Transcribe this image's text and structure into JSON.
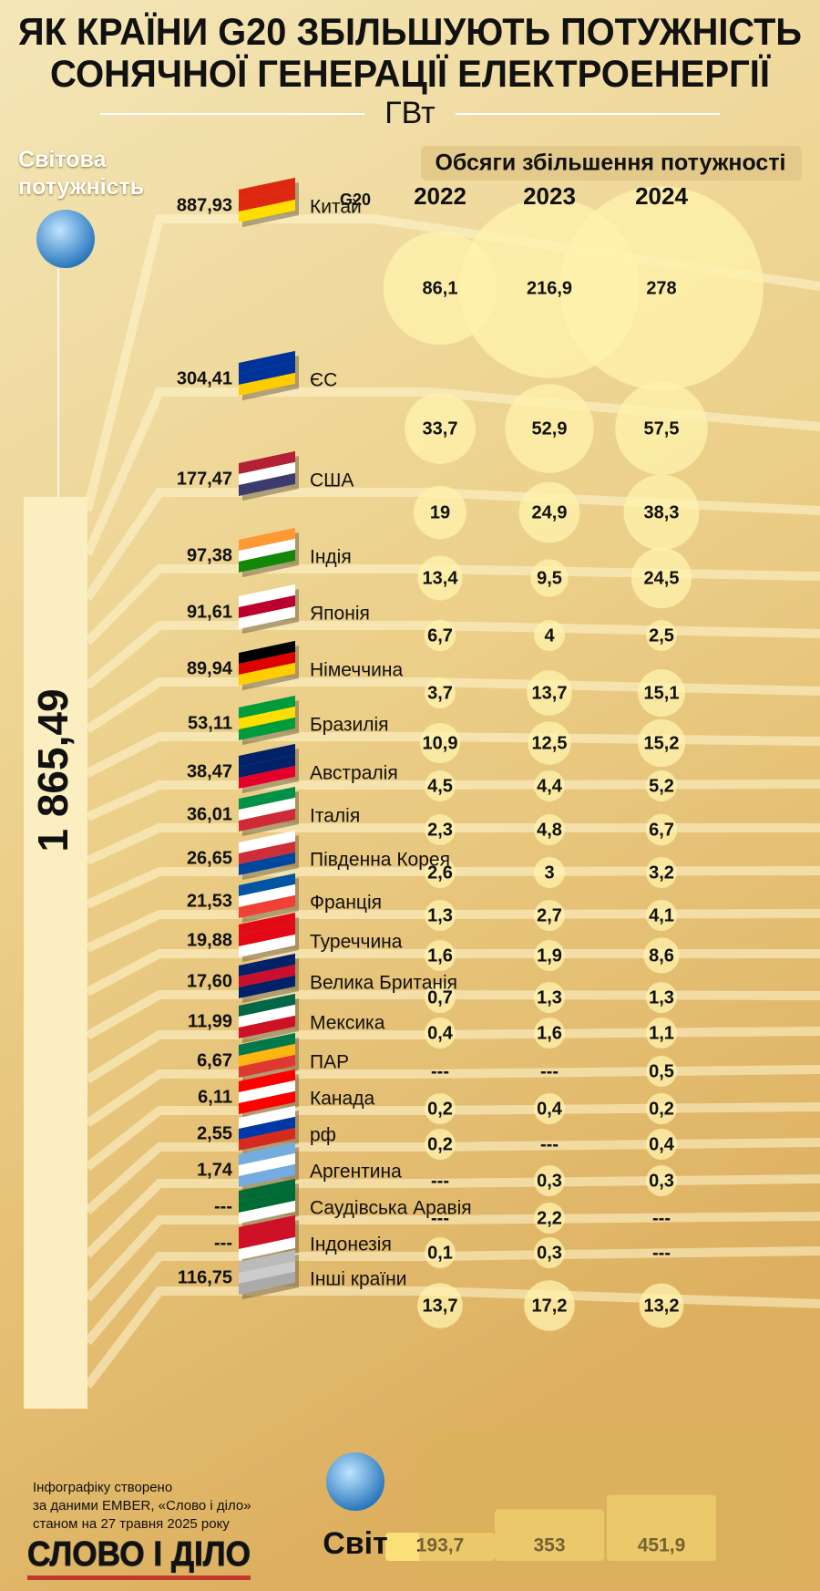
{
  "chart_data": {
    "type": "bubble-table",
    "title": [
      "ЯК КРАЇНИ G20 ЗБІЛЬШУЮТЬ ПОТУЖНІСТЬ",
      "СОНЯЧНОЇ ГЕНЕРАЦІЇ ЕЛЕКТРОЕНЕРГІЇ"
    ],
    "unit": "ГВт",
    "total_label": "Світова потужність",
    "total": "1 865,49",
    "increase_header": "Обсяги збільшення потужності",
    "group_label": "G20",
    "categories": [
      "Китай",
      "ЄС",
      "США",
      "Індія",
      "Японія",
      "Німеччина",
      "Бразилія",
      "Австралія",
      "Італія",
      "Південна Корея",
      "Франція",
      "Туреччина",
      "Велика Британія",
      "Мексика",
      "ПАР",
      "Канада",
      "рф",
      "Аргентина",
      "Саудівська Аравія",
      "Індонезія",
      "Інші країни"
    ],
    "capacity": [
      "887,93",
      "304,41",
      "177,47",
      "97,38",
      "91,61",
      "89,94",
      "53,11",
      "38,47",
      "36,01",
      "26,65",
      "21,53",
      "19,88",
      "17,60",
      "11,99",
      "6,67",
      "6,11",
      "2,55",
      "1,74",
      "---",
      "---",
      "116,75"
    ],
    "series": [
      {
        "name": "2022",
        "color": "#fff3ad",
        "values": [
          86.1,
          33.7,
          19,
          13.4,
          6.7,
          3.7,
          10.9,
          4.5,
          2.3,
          2.6,
          1.3,
          1.6,
          0.7,
          0.4,
          null,
          0.2,
          0.2,
          null,
          null,
          0.1,
          13.7
        ],
        "value_labels": [
          "86,1",
          "33,7",
          "19",
          "13,4",
          "6,7",
          "3,7",
          "10,9",
          "4,5",
          "2,3",
          "2,6",
          "1,3",
          "1,6",
          "0,7",
          "0,4",
          "---",
          "0,2",
          "0,2",
          "---",
          "---",
          "0,1",
          "13,7"
        ]
      },
      {
        "name": "2023",
        "color": "#fff3ad",
        "values": [
          216.9,
          52.9,
          24.9,
          9.5,
          4,
          13.7,
          12.5,
          4.4,
          4.8,
          3,
          2.7,
          1.9,
          1.3,
          1.6,
          null,
          0.4,
          null,
          0.3,
          2.2,
          0.3,
          17.2
        ],
        "value_labels": [
          "216,9",
          "52,9",
          "24,9",
          "9,5",
          "4",
          "13,7",
          "12,5",
          "4,4",
          "4,8",
          "3",
          "2,7",
          "1,9",
          "1,3",
          "1,6",
          "---",
          "0,4",
          "---",
          "0,3",
          "2,2",
          "0,3",
          "17,2"
        ]
      },
      {
        "name": "2024",
        "color": "#fff3ad",
        "values": [
          278,
          57.5,
          38.3,
          24.5,
          2.5,
          15.1,
          15.2,
          5.2,
          6.7,
          3.2,
          4.1,
          8.6,
          1.3,
          1.1,
          0.5,
          0.2,
          0.4,
          0.3,
          null,
          null,
          13.2
        ],
        "value_labels": [
          "278",
          "57,5",
          "38,3",
          "24,5",
          "2,5",
          "15,1",
          "15,2",
          "5,2",
          "6,7",
          "3,2",
          "4,1",
          "8,6",
          "1,3",
          "1,1",
          "0,5",
          "0,2",
          "0,4",
          "0,3",
          "---",
          "---",
          "13,2"
        ]
      }
    ],
    "world": {
      "name": "Світ",
      "color": "#fbe07a",
      "values": [
        193.7,
        353,
        451.9
      ],
      "value_labels": [
        "193,7",
        "353",
        "451,9"
      ]
    },
    "source": [
      "Інфографіку створено",
      "за даними EMBER, «Слово і діло»",
      "станом на 27 травня 2025 року"
    ],
    "logo": "СЛОВО І ДІЛО"
  }
}
